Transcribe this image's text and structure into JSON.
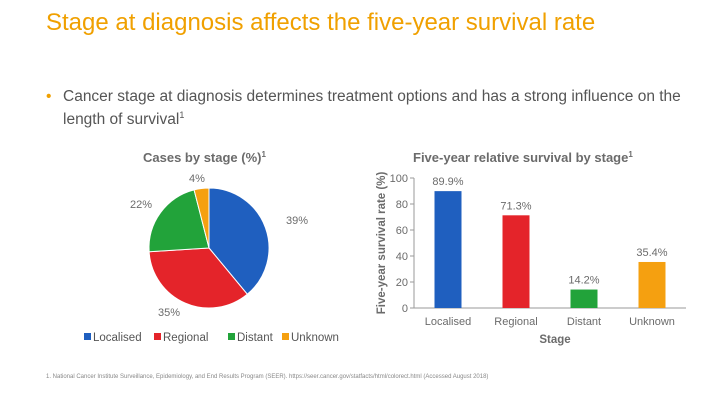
{
  "slide": {
    "title": "Stage at diagnosis affects the five-year survival rate",
    "bullet": "Cancer stage at diagnosis determines treatment options and has a strong influence on the length of survival",
    "bullet_sup": "1",
    "footnote": "1. National Cancer Institute Surveillance, Epidemiology, and End Results Program (SEER). https://seer.cancer.gov/statfacts/html/colorect.html (Accessed August 2018)"
  },
  "colors": {
    "title": "#f0a000",
    "Localised": "#1f5fbf",
    "Regional": "#e4242a",
    "Distant": "#22a33a",
    "Unknown": "#f5a010"
  },
  "chart_data": [
    {
      "type": "pie",
      "title": "Cases by stage (%)",
      "title_sup": "1",
      "categories": [
        "Localised",
        "Regional",
        "Distant",
        "Unknown"
      ],
      "values": [
        39,
        35,
        22,
        4
      ],
      "labels": [
        "39%",
        "35%",
        "22%",
        "4%"
      ],
      "legend_placement": "bottom"
    },
    {
      "type": "bar",
      "title": "Five-year relative survival by stage",
      "title_sup": "1",
      "categories": [
        "Localised",
        "Regional",
        "Distant",
        "Unknown"
      ],
      "values": [
        89.9,
        71.3,
        14.2,
        35.4
      ],
      "labels": [
        "89.9%",
        "71.3%",
        "14.2%",
        "35.4%"
      ],
      "xlabel": "Stage",
      "ylabel": "Five-year survival rate (%)",
      "ylim": [
        0,
        100
      ],
      "yticks": [
        "0",
        "20",
        "40",
        "60",
        "80",
        "100"
      ],
      "grid": false
    }
  ]
}
